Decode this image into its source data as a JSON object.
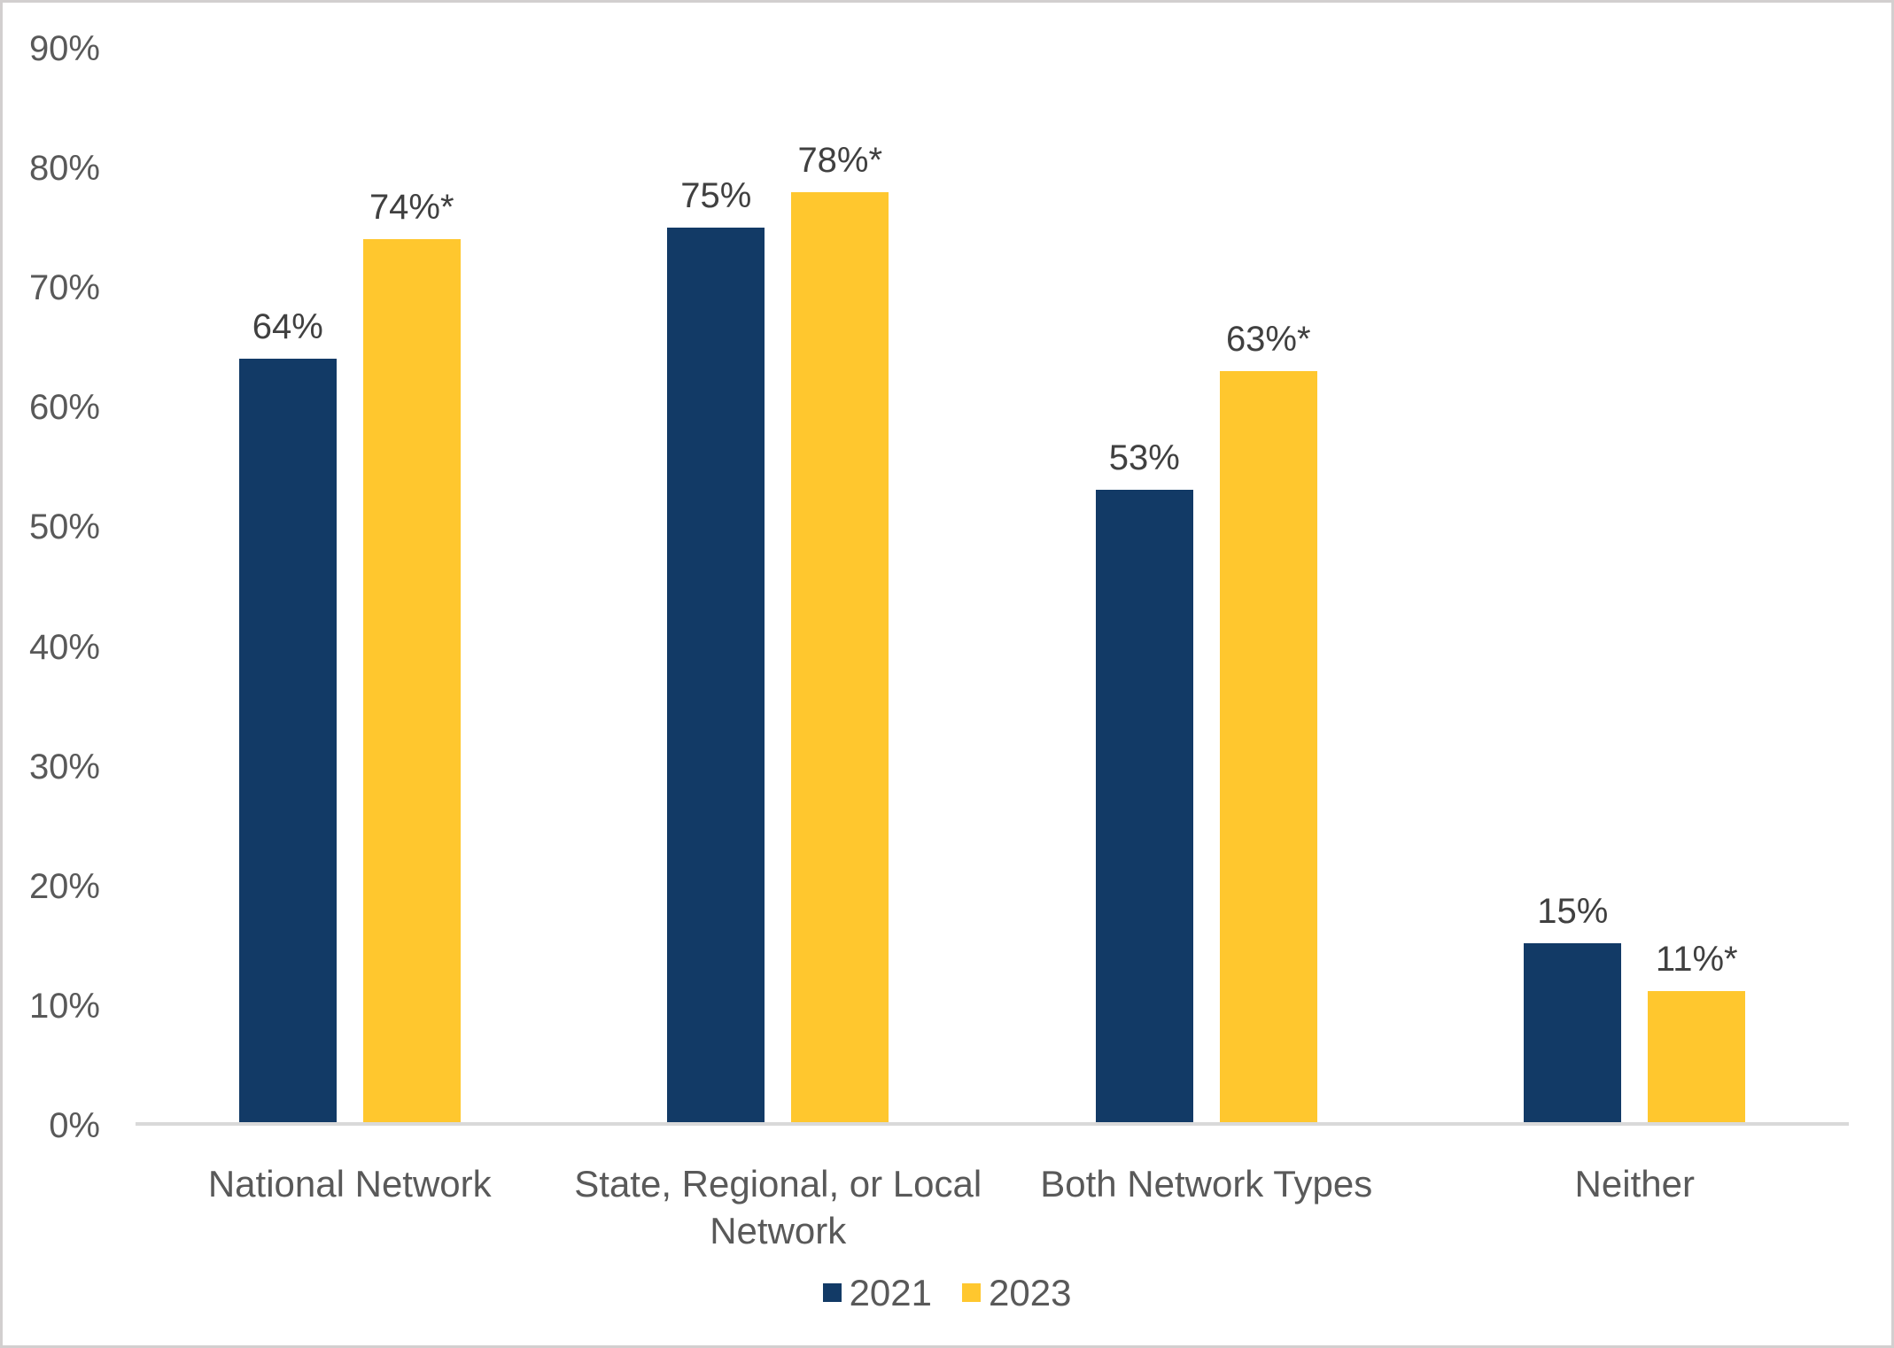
{
  "chart_data": {
    "type": "bar",
    "title": "",
    "xlabel": "",
    "ylabel": "",
    "grid": false,
    "legend_position": "bottom",
    "ylim": [
      0,
      90
    ],
    "y_ticks": [
      {
        "label": "0%",
        "value": 0
      },
      {
        "label": "10%",
        "value": 10
      },
      {
        "label": "20%",
        "value": 20
      },
      {
        "label": "30%",
        "value": 30
      },
      {
        "label": "40%",
        "value": 40
      },
      {
        "label": "50%",
        "value": 50
      },
      {
        "label": "60%",
        "value": 60
      },
      {
        "label": "70%",
        "value": 70
      },
      {
        "label": "80%",
        "value": 80
      },
      {
        "label": "90%",
        "value": 90
      }
    ],
    "categories": [
      "National Network",
      "State, Regional, or Local Network",
      "Both Network Types",
      "Neither"
    ],
    "series": [
      {
        "name": "2021",
        "color": "#123A66",
        "values": [
          64,
          75,
          53,
          15
        ],
        "labels": [
          "64%",
          "75%",
          "53%",
          "15%"
        ]
      },
      {
        "name": "2023",
        "color": "#FFC72E",
        "values": [
          74,
          78,
          63,
          11
        ],
        "labels": [
          "74%*",
          "78%*",
          "63%*",
          "11%*"
        ]
      }
    ]
  },
  "colors": {
    "axis_line": "#d9d9d9",
    "frame_border": "#d2cfcf",
    "tick_text": "#595959",
    "category_text": "#595959",
    "data_label_text": "#404040",
    "background": "#ffffff"
  }
}
